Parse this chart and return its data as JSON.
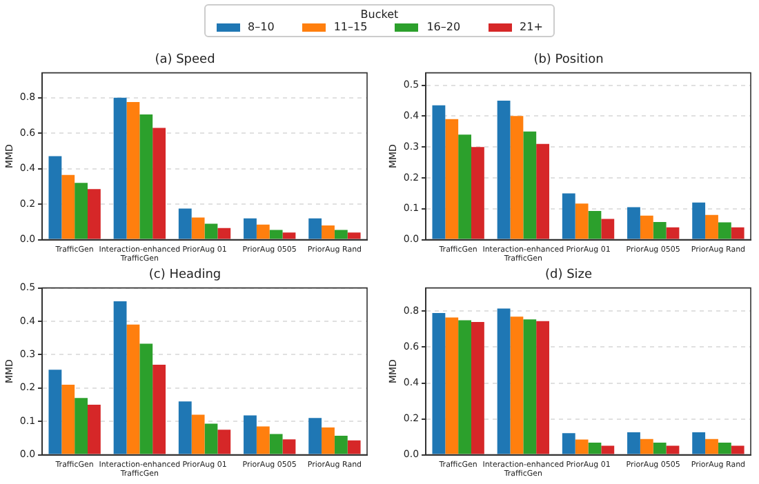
{
  "chart_data": [
    {
      "type": "bar",
      "title": "(a) Speed",
      "ylabel": "MMD",
      "legend": "top",
      "legend_title": "Bucket",
      "grid": "y",
      "categories": [
        "TrafficGen",
        "Interaction-enhanced TrafficGen",
        "PriorAug 01",
        "PriorAug 0505",
        "PriorAug Rand"
      ],
      "ylim": [
        0,
        0.94
      ],
      "yticks": [
        {
          "value": 0,
          "label": "0.0"
        },
        {
          "value": 0.2,
          "label": "0.2"
        },
        {
          "value": 0.4,
          "label": "0.4"
        },
        {
          "value": 0.6,
          "label": "0.6"
        },
        {
          "value": 0.8,
          "label": "0.8"
        }
      ],
      "series": [
        {
          "name": "8–10",
          "color": "#1f77b4",
          "values": [
            0.47,
            0.8,
            0.175,
            0.12,
            0.12
          ]
        },
        {
          "name": "11–15",
          "color": "#ff7f0e",
          "values": [
            0.365,
            0.775,
            0.125,
            0.085,
            0.08
          ]
        },
        {
          "name": "16–20",
          "color": "#2ca02c",
          "values": [
            0.32,
            0.705,
            0.09,
            0.055,
            0.055
          ]
        },
        {
          "name": "21+",
          "color": "#d62728",
          "values": [
            0.285,
            0.63,
            0.065,
            0.04,
            0.04
          ]
        }
      ]
    },
    {
      "type": "bar",
      "title": "(b) Position",
      "ylabel": "MMD",
      "grid": "y",
      "categories": [
        "TrafficGen",
        "Interaction-enhanced TrafficGen",
        "PriorAug 01",
        "PriorAug 0505",
        "PriorAug Rand"
      ],
      "ylim": [
        0,
        0.54
      ],
      "yticks": [
        {
          "value": 0,
          "label": "0.0"
        },
        {
          "value": 0.1,
          "label": "0.1"
        },
        {
          "value": 0.2,
          "label": "0.2"
        },
        {
          "value": 0.3,
          "label": "0.3"
        },
        {
          "value": 0.4,
          "label": "0.4"
        },
        {
          "value": 0.5,
          "label": "0.5"
        }
      ],
      "series": [
        {
          "color": "#1f77b4",
          "values": [
            0.435,
            0.45,
            0.15,
            0.105,
            0.12
          ]
        },
        {
          "color": "#ff7f0e",
          "values": [
            0.39,
            0.4,
            0.117,
            0.078,
            0.08
          ]
        },
        {
          "color": "#2ca02c",
          "values": [
            0.34,
            0.35,
            0.093,
            0.057,
            0.056
          ]
        },
        {
          "color": "#d62728",
          "values": [
            0.3,
            0.31,
            0.067,
            0.04,
            0.04
          ]
        }
      ]
    },
    {
      "type": "bar",
      "title": "(c) Heading",
      "ylabel": "MMD",
      "grid": "y",
      "categories": [
        "TrafficGen",
        "Interaction-enhanced TrafficGen",
        "PriorAug 01",
        "PriorAug 0505",
        "PriorAug Rand"
      ],
      "ylim": [
        0,
        0.5
      ],
      "yticks": [
        {
          "value": 0,
          "label": "0.0"
        },
        {
          "value": 0.1,
          "label": "0.1"
        },
        {
          "value": 0.2,
          "label": "0.2"
        },
        {
          "value": 0.3,
          "label": "0.3"
        },
        {
          "value": 0.4,
          "label": "0.4"
        },
        {
          "value": 0.5,
          "label": "0.5"
        }
      ],
      "series": [
        {
          "color": "#1f77b4",
          "values": [
            0.255,
            0.46,
            0.16,
            0.118,
            0.11
          ]
        },
        {
          "color": "#ff7f0e",
          "values": [
            0.21,
            0.39,
            0.12,
            0.085,
            0.082
          ]
        },
        {
          "color": "#2ca02c",
          "values": [
            0.17,
            0.333,
            0.093,
            0.062,
            0.057
          ]
        },
        {
          "color": "#d62728",
          "values": [
            0.15,
            0.27,
            0.075,
            0.046,
            0.043
          ]
        }
      ]
    },
    {
      "type": "bar",
      "title": "(d) Size",
      "ylabel": "MMD",
      "grid": "y",
      "categories": [
        "TrafficGen",
        "Interaction-enhanced TrafficGen",
        "PriorAug 01",
        "PriorAug 0505",
        "PriorAug Rand"
      ],
      "ylim": [
        0,
        0.93
      ],
      "yticks": [
        {
          "value": 0,
          "label": "0.0"
        },
        {
          "value": 0.2,
          "label": "0.2"
        },
        {
          "value": 0.4,
          "label": "0.4"
        },
        {
          "value": 0.6,
          "label": "0.6"
        },
        {
          "value": 0.8,
          "label": "0.8"
        }
      ],
      "series": [
        {
          "color": "#1f77b4",
          "values": [
            0.79,
            0.815,
            0.12,
            0.125,
            0.125
          ]
        },
        {
          "color": "#ff7f0e",
          "values": [
            0.765,
            0.77,
            0.085,
            0.088,
            0.088
          ]
        },
        {
          "color": "#2ca02c",
          "values": [
            0.75,
            0.755,
            0.068,
            0.068,
            0.068
          ]
        },
        {
          "color": "#d62728",
          "values": [
            0.74,
            0.745,
            0.05,
            0.05,
            0.05
          ]
        }
      ]
    }
  ]
}
